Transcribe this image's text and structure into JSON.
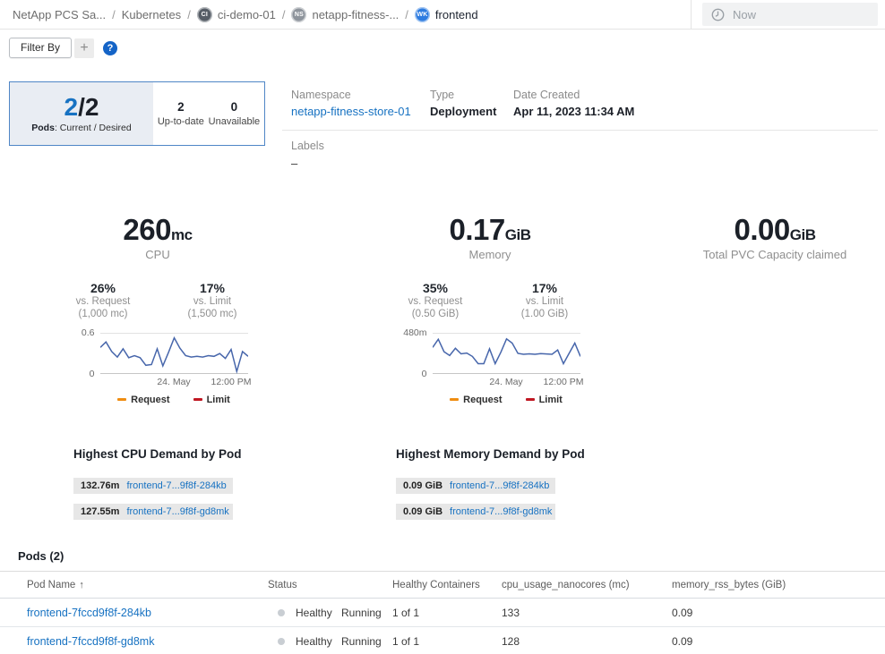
{
  "colors": {
    "link": "#1772c2",
    "accent_blue": "#1772c2",
    "status_dot": "#c9ced3",
    "request": "#ef8d11",
    "limit": "#c01722",
    "usage_line": "#4766ab"
  },
  "breadcrumb": {
    "separator": "/",
    "items": [
      {
        "label": "NetApp PCS Sa...",
        "icon": null
      },
      {
        "label": "Kubernetes",
        "icon": null
      },
      {
        "label": "ci-demo-01",
        "icon": "CI"
      },
      {
        "label": "netapp-fitness-...",
        "icon": "NS"
      },
      {
        "label": "frontend",
        "icon": "WK"
      }
    ]
  },
  "time_selector": {
    "label": "Now"
  },
  "toolbar": {
    "filter_label": "Filter By",
    "add_label": "+",
    "help_label": "?"
  },
  "pods_card": {
    "current": "2",
    "desired": "/2",
    "caption_bold": "Pods",
    "caption_rest": ": Current / Desired",
    "up_to_date": {
      "value": "2",
      "label": "Up-to-date"
    },
    "unavailable": {
      "value": "0",
      "label": "Unavailable"
    }
  },
  "details": {
    "namespace": {
      "label": "Namespace",
      "value": "netapp-fitness-store-01"
    },
    "type": {
      "label": "Type",
      "value": "Deployment"
    },
    "date_created": {
      "label": "Date Created",
      "value": "Apr 11, 2023 11:34 AM"
    },
    "labels": {
      "label": "Labels",
      "value": "–"
    }
  },
  "metrics": {
    "cpu": {
      "value": "260",
      "unit": "mc",
      "name": "CPU",
      "vs_request": {
        "pct": "26%",
        "label": "vs. Request",
        "detail": "(1,000 mc)"
      },
      "vs_limit": {
        "pct": "17%",
        "label": "vs. Limit",
        "detail": "(1,500 mc)"
      }
    },
    "memory": {
      "value": "0.17",
      "unit": "GiB",
      "name": "Memory",
      "vs_request": {
        "pct": "35%",
        "label": "vs. Request",
        "detail": "(0.50 GiB)"
      },
      "vs_limit": {
        "pct": "17%",
        "label": "vs. Limit",
        "detail": "(1.00 GiB)"
      }
    },
    "pvc": {
      "value": "0.00",
      "unit": "GiB",
      "name": "Total PVC Capacity claimed"
    }
  },
  "chart_data": [
    {
      "type": "line",
      "title": "CPU usage",
      "ylim": [
        0,
        0.6
      ],
      "yticks": [
        "0",
        "0.6"
      ],
      "xticks": [
        "24. May",
        "12:00 PM"
      ],
      "grid": "top-and-baseline",
      "legend_position": "bottom",
      "legend": [
        {
          "name": "Request",
          "color": "#ef8d11"
        },
        {
          "name": "Limit",
          "color": "#c01722"
        }
      ],
      "series": [
        {
          "name": "cpu_usage",
          "color": "#4766ab",
          "values": [
            0.4,
            0.48,
            0.34,
            0.26,
            0.38,
            0.25,
            0.28,
            0.25,
            0.14,
            0.15,
            0.38,
            0.13,
            0.33,
            0.54,
            0.39,
            0.28,
            0.26,
            0.27,
            0.26,
            0.28,
            0.27,
            0.31,
            0.24,
            0.37,
            0.05,
            0.34,
            0.27
          ]
        }
      ]
    },
    {
      "type": "line",
      "title": "Memory usage",
      "ylim": [
        0,
        480
      ],
      "yticks": [
        "0",
        "480m"
      ],
      "xticks": [
        "24. May",
        "12:00 PM"
      ],
      "grid": "top-and-baseline",
      "legend_position": "bottom",
      "legend": [
        {
          "name": "Request",
          "color": "#ef8d11"
        },
        {
          "name": "Limit",
          "color": "#c01722"
        }
      ],
      "series": [
        {
          "name": "memory_usage",
          "color": "#4766ab",
          "values": [
            320,
            415,
            270,
            225,
            310,
            245,
            255,
            215,
            130,
            130,
            305,
            130,
            265,
            420,
            370,
            250,
            240,
            245,
            240,
            248,
            244,
            240,
            290,
            130,
            250,
            370,
            215
          ]
        }
      ]
    }
  ],
  "top_cpu": {
    "title": "Highest CPU Demand by Pod",
    "rows": [
      {
        "value": "132.76m",
        "pod": "frontend-7...9f8f-284kb"
      },
      {
        "value": "127.55m",
        "pod": "frontend-7...9f8f-gd8mk"
      }
    ]
  },
  "top_memory": {
    "title": "Highest Memory Demand by Pod",
    "rows": [
      {
        "value": "0.09 GiB",
        "pod": "frontend-7...9f8f-284kb"
      },
      {
        "value": "0.09 GiB",
        "pod": "frontend-7...9f8f-gd8mk"
      }
    ]
  },
  "pods_table": {
    "title": "Pods (2)",
    "sort_icon": "↑",
    "columns": {
      "name": "Pod Name",
      "status": "Status",
      "healthy": "Healthy Containers",
      "cpu": "cpu_usage_nanocores (mc)",
      "memory": "memory_rss_bytes (GiB)"
    },
    "rows": [
      {
        "name": "frontend-7fccd9f8f-284kb",
        "health": "Healthy",
        "state": "Running",
        "healthy_containers": "1 of 1",
        "cpu": "133",
        "memory": "0.09"
      },
      {
        "name": "frontend-7fccd9f8f-gd8mk",
        "health": "Healthy",
        "state": "Running",
        "healthy_containers": "1 of 1",
        "cpu": "128",
        "memory": "0.09"
      }
    ]
  }
}
